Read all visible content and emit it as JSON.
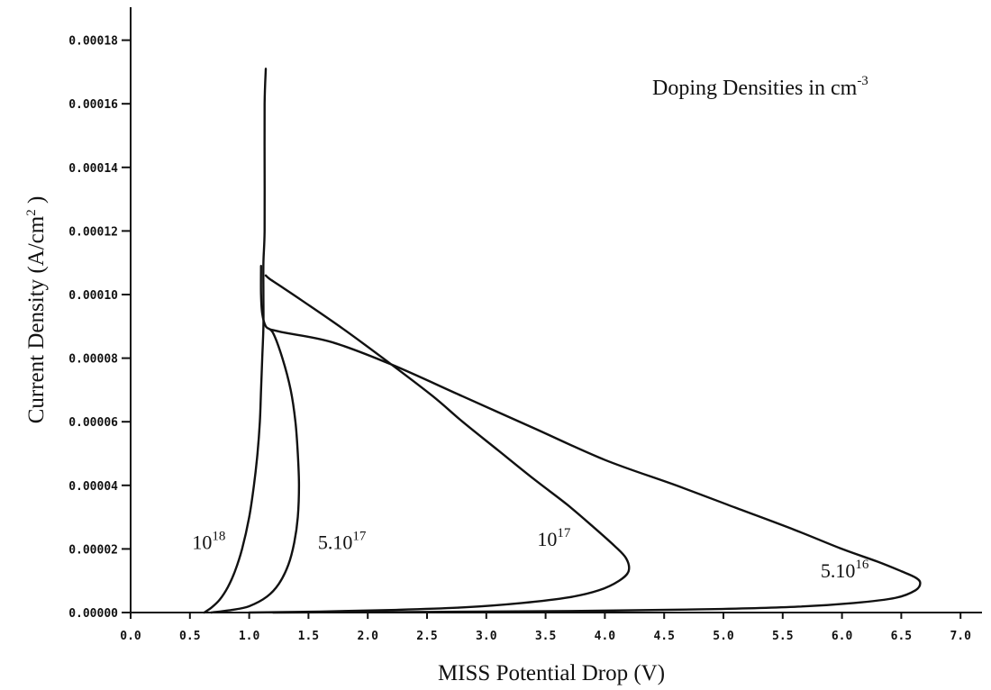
{
  "chart_data": {
    "type": "line",
    "title": "",
    "xlabel": "MISS Potential Drop (V)",
    "ylabel": "Current Density (A/cm 2 )",
    "ylabel_base": "Current Density (A/cm",
    "ylabel_sup": "2",
    "ylabel_end": " )",
    "xlim": [
      0.0,
      7.2
    ],
    "ylim": [
      0.0,
      0.00019
    ],
    "x_ticks": [
      0.0,
      0.5,
      1.0,
      1.5,
      2.0,
      2.5,
      3.0,
      3.5,
      4.0,
      4.5,
      5.0,
      5.5,
      6.0,
      6.5,
      7.0
    ],
    "x_tick_labels": [
      "0.0",
      "0.5",
      "1.0",
      "1.5",
      "2.0",
      "2.5",
      "3.0",
      "3.5",
      "4.0",
      "4.5",
      "5.0",
      "5.5",
      "6.0",
      "6.5",
      "7.0"
    ],
    "y_ticks": [
      0,
      2e-05,
      4e-05,
      6e-05,
      8e-05,
      0.0001,
      0.00012,
      0.00014,
      0.00016,
      0.00018
    ],
    "y_tick_labels": [
      "0.00000",
      "0.00002",
      "0.00004",
      "0.00006",
      "0.00008",
      "0.00010",
      "0.00012",
      "0.00014",
      "0.00016",
      "0.00018"
    ],
    "grid": false,
    "legend": "none",
    "annotation": {
      "text": "Doping Densities in cm-3",
      "base": "Doping Densities in cm",
      "sup": "-3"
    },
    "series": [
      {
        "label_base": "10",
        "label_sup": "18",
        "label_at": [
          0.52,
          2e-05
        ],
        "x": [
          0.62,
          0.68,
          0.75,
          0.82,
          0.88,
          0.94,
          1.0,
          1.04,
          1.07,
          1.09,
          1.1,
          1.11,
          1.12,
          1.12,
          1.12,
          1.13,
          1.13,
          1.13,
          1.14
        ],
        "y": [
          0.0,
          1.5e-06,
          4e-06,
          8e-06,
          1.3e-05,
          2e-05,
          3e-05,
          4e-05,
          5e-05,
          6e-05,
          7e-05,
          8e-05,
          9e-05,
          0.0001,
          0.00011,
          0.00012,
          0.00014,
          0.00016,
          0.000171
        ]
      },
      {
        "label_base": "5.10",
        "label_sup": "17",
        "label_at": [
          1.58,
          2e-05
        ],
        "x": [
          0.68,
          0.85,
          1.0,
          1.15,
          1.25,
          1.33,
          1.38,
          1.41,
          1.42,
          1.41,
          1.39,
          1.35,
          1.28,
          1.2,
          1.14,
          1.11,
          1.1,
          1.1
        ],
        "y": [
          0.0,
          8e-07,
          2e-06,
          5e-06,
          9e-06,
          1.5e-05,
          2.2e-05,
          3e-05,
          4e-05,
          5e-05,
          6e-05,
          7e-05,
          8e-05,
          8.8e-05,
          9e-05,
          9.4e-05,
          0.0001,
          0.000109
        ]
      },
      {
        "label_base": "10",
        "label_sup": "17",
        "label_at": [
          3.43,
          2.1e-05
        ],
        "x": [
          1.0,
          1.6,
          2.2,
          2.8,
          3.3,
          3.7,
          3.95,
          4.12,
          4.2,
          4.18,
          4.08,
          3.9,
          3.68,
          3.4,
          3.1,
          2.8,
          2.55,
          2.2,
          1.8,
          1.45,
          1.25,
          1.17,
          1.14
        ],
        "y": [
          0.0,
          3e-07,
          8e-07,
          1.6e-06,
          3e-06,
          4.8e-06,
          7e-06,
          1e-05,
          1.3e-05,
          1.7e-05,
          2.1e-05,
          2.7e-05,
          3.4e-05,
          4.2e-05,
          5.1e-05,
          6e-05,
          6.8e-05,
          7.8e-05,
          8.9e-05,
          9.8e-05,
          0.000103,
          0.000105,
          0.000106
        ]
      },
      {
        "label_base": "5.10",
        "label_sup": "16",
        "label_at": [
          5.82,
          1.1e-05
        ],
        "x": [
          1.2,
          2.5,
          3.8,
          4.8,
          5.6,
          6.1,
          6.45,
          6.62,
          6.66,
          6.62,
          6.5,
          6.3,
          6.0,
          5.6,
          5.1,
          4.6,
          4.0,
          3.4,
          2.8,
          2.2,
          1.7,
          1.3,
          1.18
        ],
        "y": [
          0.0,
          2e-07,
          5e-07,
          1e-06,
          1.8e-06,
          3e-06,
          4.6e-06,
          7e-06,
          9.3e-06,
          1.1e-05,
          1.3e-05,
          1.6e-05,
          2e-05,
          2.6e-05,
          3.3e-05,
          4e-05,
          4.8e-05,
          5.8e-05,
          6.8e-05,
          7.8e-05,
          8.5e-05,
          8.8e-05,
          8.9e-05
        ]
      }
    ]
  }
}
